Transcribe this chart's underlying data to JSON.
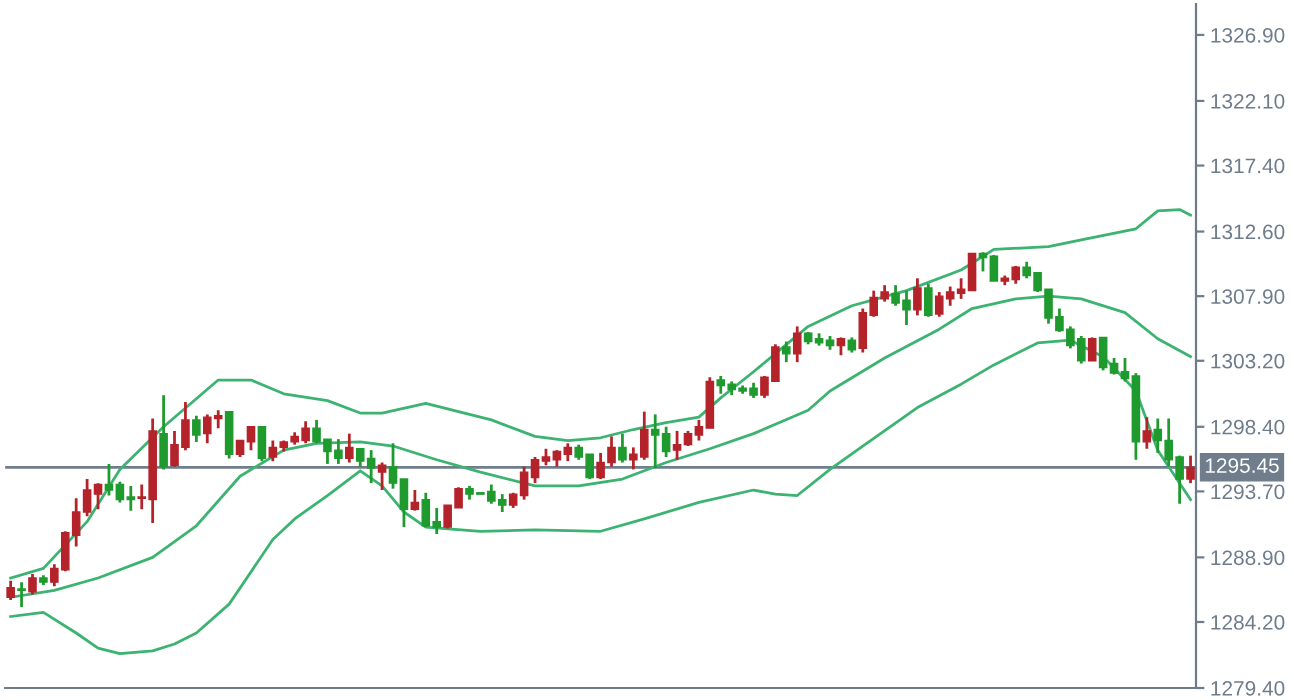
{
  "chart_data": {
    "type": "candlestick",
    "categories": [
      null,
      null,
      null,
      null,
      null,
      null,
      null,
      null,
      null,
      null,
      null,
      null,
      null,
      null,
      null,
      null,
      null,
      null,
      null,
      null,
      null,
      null,
      null,
      null,
      null,
      null,
      null,
      null,
      null,
      null,
      null,
      null,
      null,
      null,
      null,
      null,
      null,
      null,
      null,
      null,
      null,
      null,
      null,
      null,
      null,
      null,
      null,
      null,
      null,
      null,
      null,
      null,
      null,
      null,
      null,
      null,
      null,
      null,
      null,
      null,
      null,
      null,
      null,
      null,
      null,
      null,
      null,
      null,
      null,
      null,
      null,
      null,
      null,
      null,
      null,
      null,
      null,
      null,
      null,
      null,
      null,
      null,
      null,
      null,
      null,
      null,
      null,
      null,
      null,
      null,
      null,
      null,
      null,
      null,
      null,
      null,
      null,
      null,
      null,
      null,
      null,
      null,
      null,
      null,
      null,
      null,
      null,
      null,
      null
    ],
    "ohlc": [
      [
        1286.0,
        1287.2,
        1285.8,
        1286.7
      ],
      [
        1286.6,
        1287.1,
        1285.3,
        1286.5
      ],
      [
        1286.4,
        1287.7,
        1286.2,
        1287.4
      ],
      [
        1287.4,
        1287.6,
        1286.9,
        1287.1
      ],
      [
        1287.1,
        1288.4,
        1286.8,
        1288.1
      ],
      [
        1288.0,
        1290.8,
        1287.9,
        1290.7
      ],
      [
        1290.5,
        1293.2,
        1289.7,
        1292.2
      ],
      [
        1292.2,
        1294.6,
        1291.9,
        1293.8
      ],
      [
        1293.5,
        1294.3,
        1292.4,
        1294.2
      ],
      [
        1294.2,
        1295.7,
        1293.4,
        1293.8
      ],
      [
        1294.2,
        1294.4,
        1292.9,
        1293.1
      ],
      [
        1293.3,
        1294.1,
        1292.3,
        1293.1
      ],
      [
        1293.2,
        1294.2,
        1292.4,
        1293.3
      ],
      [
        1293.1,
        1299.0,
        1291.4,
        1298.1
      ],
      [
        1297.9,
        1300.7,
        1295.3,
        1295.5
      ],
      [
        1295.6,
        1298.1,
        1295.5,
        1297.1
      ],
      [
        1296.9,
        1300.2,
        1296.7,
        1298.9
      ],
      [
        1298.9,
        1299.2,
        1297.3,
        1297.8
      ],
      [
        1297.9,
        1299.3,
        1297.2,
        1299.1
      ],
      [
        1299.0,
        1299.6,
        1298.3,
        1299.2
      ],
      [
        1299.5,
        1299.5,
        1296.1,
        1296.4
      ],
      [
        1296.4,
        1297.4,
        1296.2,
        1297.4
      ],
      [
        1297.3,
        1298.4,
        1296.7,
        1298.4
      ],
      [
        1298.4,
        1298.4,
        1295.9,
        1296.1
      ],
      [
        1296.2,
        1297.4,
        1295.9,
        1296.9
      ],
      [
        1296.9,
        1297.4,
        1296.6,
        1297.3
      ],
      [
        1297.3,
        1298.0,
        1297.1,
        1297.7
      ],
      [
        1297.4,
        1298.8,
        1297.2,
        1298.3
      ],
      [
        1298.3,
        1298.9,
        1297.2,
        1297.3
      ],
      [
        1297.5,
        1297.5,
        1295.7,
        1296.6
      ],
      [
        1296.7,
        1297.5,
        1295.7,
        1296.1
      ],
      [
        1296.1,
        1297.9,
        1295.8,
        1296.9
      ],
      [
        1296.8,
        1296.8,
        1295.5,
        1295.9
      ],
      [
        1296.1,
        1296.7,
        1294.3,
        1295.4
      ],
      [
        1295.1,
        1295.8,
        1293.8,
        1295.6
      ],
      [
        1295.5,
        1297.2,
        1293.9,
        1294.3
      ],
      [
        1294.6,
        1294.6,
        1291.1,
        1292.4
      ],
      [
        1292.4,
        1293.8,
        1292.3,
        1292.9
      ],
      [
        1293.1,
        1293.6,
        1291.1,
        1291.2
      ],
      [
        1291.5,
        1292.5,
        1290.6,
        1291.1
      ],
      [
        1291.1,
        1292.7,
        1291.0,
        1292.7
      ],
      [
        1292.5,
        1294.0,
        1292.5,
        1293.9
      ],
      [
        1293.9,
        1294.1,
        1293.1,
        1293.5
      ],
      [
        1293.6,
        1293.6,
        1293.5,
        1293.5
      ],
      [
        1293.7,
        1294.2,
        1292.8,
        1293.0
      ],
      [
        1293.1,
        1293.5,
        1292.2,
        1292.7
      ],
      [
        1292.7,
        1293.6,
        1292.5,
        1293.5
      ],
      [
        1293.4,
        1295.5,
        1293.1,
        1295.1
      ],
      [
        1294.7,
        1296.2,
        1294.3,
        1296.0
      ],
      [
        1295.9,
        1296.8,
        1295.6,
        1296.2
      ],
      [
        1296.0,
        1296.7,
        1295.5,
        1296.6
      ],
      [
        1296.4,
        1297.2,
        1295.9,
        1296.9
      ],
      [
        1296.9,
        1297.1,
        1296.0,
        1296.2
      ],
      [
        1296.4,
        1296.4,
        1294.6,
        1294.7
      ],
      [
        1294.7,
        1296.5,
        1294.6,
        1295.8
      ],
      [
        1295.8,
        1297.7,
        1295.5,
        1296.9
      ],
      [
        1296.9,
        1297.9,
        1295.8,
        1296.0
      ],
      [
        1296.0,
        1296.9,
        1295.3,
        1296.4
      ],
      [
        1296.2,
        1299.5,
        1296.0,
        1298.2
      ],
      [
        1298.2,
        1299.3,
        1295.4,
        1297.8
      ],
      [
        1297.9,
        1298.4,
        1296.2,
        1296.6
      ],
      [
        1296.7,
        1298.1,
        1296.0,
        1297.1
      ],
      [
        1297.1,
        1298.1,
        1297.0,
        1297.9
      ],
      [
        1297.8,
        1298.9,
        1297.4,
        1298.4
      ],
      [
        1298.3,
        1302.0,
        1298.3,
        1301.7
      ],
      [
        1301.8,
        1302.1,
        1300.8,
        1301.4
      ],
      [
        1301.5,
        1301.7,
        1300.7,
        1301.1
      ],
      [
        1301.2,
        1301.4,
        1300.8,
        1301.0
      ],
      [
        1301.2,
        1301.6,
        1300.5,
        1300.7
      ],
      [
        1300.7,
        1302.1,
        1300.5,
        1302.0
      ],
      [
        1301.7,
        1304.4,
        1301.7,
        1304.2
      ],
      [
        1304.2,
        1304.6,
        1303.1,
        1303.7
      ],
      [
        1303.7,
        1305.7,
        1303.1,
        1305.2
      ],
      [
        1305.2,
        1305.3,
        1304.4,
        1304.6
      ],
      [
        1304.8,
        1305.2,
        1304.3,
        1304.5
      ],
      [
        1304.7,
        1305.0,
        1304.0,
        1304.3
      ],
      [
        1304.3,
        1304.9,
        1303.6,
        1304.8
      ],
      [
        1304.7,
        1304.9,
        1303.8,
        1304.0
      ],
      [
        1304.1,
        1307.0,
        1303.8,
        1306.7
      ],
      [
        1306.5,
        1308.3,
        1306.4,
        1307.8
      ],
      [
        1307.7,
        1308.7,
        1307.5,
        1308.2
      ],
      [
        1308.1,
        1308.7,
        1307.2,
        1307.4
      ],
      [
        1307.6,
        1308.3,
        1305.8,
        1306.9
      ],
      [
        1306.9,
        1309.2,
        1306.5,
        1308.5
      ],
      [
        1308.5,
        1308.8,
        1306.4,
        1306.5
      ],
      [
        1306.6,
        1308.2,
        1306.4,
        1307.9
      ],
      [
        1307.7,
        1308.6,
        1307.2,
        1308.2
      ],
      [
        1308.1,
        1309.2,
        1307.7,
        1308.4
      ],
      [
        1308.3,
        1311.0,
        1308.3,
        1311.0
      ],
      [
        1311.0,
        1311.1,
        1309.7,
        1310.7
      ],
      [
        1310.8,
        1310.9,
        1309.0,
        1309.0
      ],
      [
        1309.0,
        1309.4,
        1308.7,
        1309.2
      ],
      [
        1309.1,
        1310.1,
        1308.8,
        1310.0
      ],
      [
        1310.0,
        1310.4,
        1309.2,
        1309.4
      ],
      [
        1309.6,
        1309.6,
        1308.2,
        1308.3
      ],
      [
        1308.4,
        1308.4,
        1305.9,
        1306.3
      ],
      [
        1306.4,
        1307.0,
        1305.3,
        1305.4
      ],
      [
        1305.5,
        1305.7,
        1304.1,
        1304.3
      ],
      [
        1304.8,
        1305.0,
        1303.0,
        1303.2
      ],
      [
        1303.2,
        1304.9,
        1303.2,
        1304.8
      ],
      [
        1304.9,
        1304.9,
        1302.5,
        1302.7
      ],
      [
        1303.0,
        1303.4,
        1302.2,
        1302.3
      ],
      [
        1302.4,
        1303.4,
        1301.7,
        1301.9
      ],
      [
        1302.1,
        1302.3,
        1296.0,
        1297.3
      ],
      [
        1297.3,
        1299.1,
        1296.8,
        1298.1
      ],
      [
        1298.2,
        1299.0,
        1296.5,
        1297.4
      ],
      [
        1297.4,
        1299.0,
        1295.5,
        1296.0
      ],
      [
        1296.2,
        1296.3,
        1292.8,
        1294.6
      ],
      [
        1294.6,
        1296.3,
        1294.3,
        1295.45
      ]
    ],
    "colors": [
      "#b5232a",
      "#1f9a2e",
      "#b5232a",
      "#1f9a2e",
      "#b5232a",
      "#b5232a",
      "#b5232a",
      "#b5232a",
      "#b5232a",
      "#1f9a2e",
      "#1f9a2e",
      "#1f9a2e",
      "#b5232a",
      "#b5232a",
      "#1f9a2e",
      "#b5232a",
      "#b5232a",
      "#1f9a2e",
      "#b5232a",
      "#b5232a",
      "#1f9a2e",
      "#b5232a",
      "#b5232a",
      "#1f9a2e",
      "#b5232a",
      "#b5232a",
      "#b5232a",
      "#b5232a",
      "#1f9a2e",
      "#1f9a2e",
      "#1f9a2e",
      "#b5232a",
      "#1f9a2e",
      "#1f9a2e",
      "#b5232a",
      "#1f9a2e",
      "#1f9a2e",
      "#b5232a",
      "#1f9a2e",
      "#1f9a2e",
      "#b5232a",
      "#b5232a",
      "#1f9a2e",
      "#1f9a2e",
      "#1f9a2e",
      "#1f9a2e",
      "#b5232a",
      "#b5232a",
      "#b5232a",
      "#b5232a",
      "#b5232a",
      "#b5232a",
      "#1f9a2e",
      "#1f9a2e",
      "#b5232a",
      "#b5232a",
      "#1f9a2e",
      "#b5232a",
      "#b5232a",
      "#1f9a2e",
      "#1f9a2e",
      "#b5232a",
      "#b5232a",
      "#b5232a",
      "#b5232a",
      "#1f9a2e",
      "#1f9a2e",
      "#1f9a2e",
      "#1f9a2e",
      "#b5232a",
      "#b5232a",
      "#1f9a2e",
      "#b5232a",
      "#1f9a2e",
      "#1f9a2e",
      "#1f9a2e",
      "#b5232a",
      "#1f9a2e",
      "#b5232a",
      "#b5232a",
      "#b5232a",
      "#1f9a2e",
      "#1f9a2e",
      "#b5232a",
      "#1f9a2e",
      "#b5232a",
      "#b5232a",
      "#b5232a",
      "#b5232a",
      "#1f9a2e",
      "#1f9a2e",
      "#b5232a",
      "#b5232a",
      "#1f9a2e",
      "#1f9a2e",
      "#1f9a2e",
      "#1f9a2e",
      "#1f9a2e",
      "#1f9a2e",
      "#b5232a",
      "#1f9a2e",
      "#1f9a2e",
      "#1f9a2e",
      "#1f9a2e",
      "#b5232a",
      "#1f9a2e",
      "#1f9a2e",
      "#1f9a2e",
      "#b5232a"
    ],
    "series": [
      {
        "type": "line",
        "color": "#3cb371",
        "values": [
          1287.4,
          null,
          null,
          1288.1,
          null,
          null,
          null,
          1291.5,
          null,
          null,
          1295.3,
          null,
          null,
          null,
          1298.4,
          null,
          null,
          null,
          null,
          1301.8,
          null,
          null,
          1301.8,
          null,
          null,
          1300.8,
          null,
          null,
          null,
          1300.3,
          null,
          null,
          1299.4,
          null,
          1299.4,
          null,
          null,
          null,
          1300.1,
          null,
          null,
          null,
          1299.3,
          null,
          1298.9,
          null,
          null,
          null,
          1297.7,
          null,
          null,
          1297.4,
          null,
          null,
          1297.6,
          null,
          null,
          1298.2,
          null,
          null,
          1298.7,
          null,
          null,
          1299.1,
          null,
          1300.5,
          null,
          null,
          1302.4,
          null,
          null,
          null,
          null,
          1305.7,
          null,
          null,
          null,
          1307.2,
          null,
          null,
          null,
          null,
          1308.3,
          null,
          null,
          null,
          null,
          1309.8,
          null,
          null,
          1311.3,
          null,
          null,
          null,
          null,
          1311.5,
          null,
          null,
          1312.0,
          null,
          null,
          null,
          null,
          1312.8,
          null,
          1314.1,
          null,
          1314.2,
          1313.8
        ]
      },
      {
        "type": "line",
        "color": "#3cb371",
        "values": [
          1286.0,
          null,
          null,
          null,
          1286.5,
          null,
          null,
          null,
          1287.4,
          null,
          null,
          null,
          null,
          1288.9,
          null,
          null,
          null,
          1291.2,
          null,
          null,
          null,
          1294.8,
          null,
          null,
          null,
          1296.7,
          null,
          null,
          1297.2,
          null,
          null,
          null,
          1297.3,
          null,
          null,
          1297.0,
          null,
          null,
          null,
          1296.0,
          null,
          null,
          null,
          1295.1,
          null,
          null,
          null,
          null,
          1294.1,
          null,
          null,
          null,
          1294.1,
          null,
          null,
          null,
          1294.6,
          null,
          null,
          null,
          1295.8,
          null,
          null,
          null,
          1296.8,
          null,
          null,
          null,
          1297.9,
          null,
          null,
          null,
          null,
          1299.6,
          null,
          1301.0,
          null,
          null,
          null,
          null,
          1303.4,
          null,
          null,
          null,
          null,
          1305.5,
          null,
          null,
          1307.0,
          null,
          null,
          null,
          1307.7,
          null,
          null,
          1307.9,
          null,
          null,
          1307.7,
          null,
          null,
          null,
          1306.7,
          null,
          null,
          1304.8,
          null,
          null,
          1303.5
        ]
      },
      {
        "type": "line",
        "color": "#3cb371",
        "values": [
          1284.6,
          null,
          null,
          1284.9,
          null,
          null,
          1283.4,
          null,
          1282.3,
          null,
          1281.9,
          null,
          null,
          1282.1,
          null,
          1282.6,
          null,
          1283.4,
          null,
          null,
          1285.5,
          null,
          null,
          null,
          1290.2,
          null,
          1291.7,
          null,
          null,
          1293.4,
          null,
          null,
          1295.2,
          null,
          1294.1,
          null,
          1292.2,
          null,
          1291.1,
          null,
          null,
          null,
          null,
          1290.8,
          null,
          null,
          null,
          null,
          1290.9,
          null,
          null,
          null,
          null,
          null,
          1290.8,
          null,
          null,
          null,
          1291.7,
          null,
          null,
          null,
          null,
          1292.9,
          null,
          null,
          null,
          null,
          1293.8,
          null,
          1293.5,
          null,
          1293.4,
          null,
          null,
          1295.3,
          null,
          null,
          1297.0,
          null,
          null,
          null,
          null,
          1299.8,
          null,
          null,
          null,
          1301.5,
          null,
          null,
          1302.9,
          null,
          null,
          null,
          1304.5,
          null,
          null,
          1304.7,
          null,
          null,
          1303.5,
          null,
          null,
          1301.0,
          null,
          1296.7,
          null,
          null,
          1293.1
        ]
      }
    ],
    "ylim": [
      1279.4,
      1329.15
    ],
    "yticks": [
      {
        "value": 1279.4,
        "label": "1279.40"
      },
      {
        "value": 1284.2,
        "label": "1284.20"
      },
      {
        "value": 1288.9,
        "label": "1288.90"
      },
      {
        "value": 1293.7,
        "label": "1293.70"
      },
      {
        "value": 1298.4,
        "label": "1298.40"
      },
      {
        "value": 1303.2,
        "label": "1303.20"
      },
      {
        "value": 1307.9,
        "label": "1307.90"
      },
      {
        "value": 1312.6,
        "label": "1312.60"
      },
      {
        "value": 1317.4,
        "label": "1317.40"
      },
      {
        "value": 1322.1,
        "label": "1322.10"
      },
      {
        "value": 1326.9,
        "label": "1326.90"
      }
    ],
    "ref_lines": [
      {
        "axis": "y",
        "value": 1295.45,
        "label": "1295.45",
        "color": "#6f7d8c"
      }
    ],
    "tick_labels": "y",
    "grid": false,
    "legend": false
  }
}
